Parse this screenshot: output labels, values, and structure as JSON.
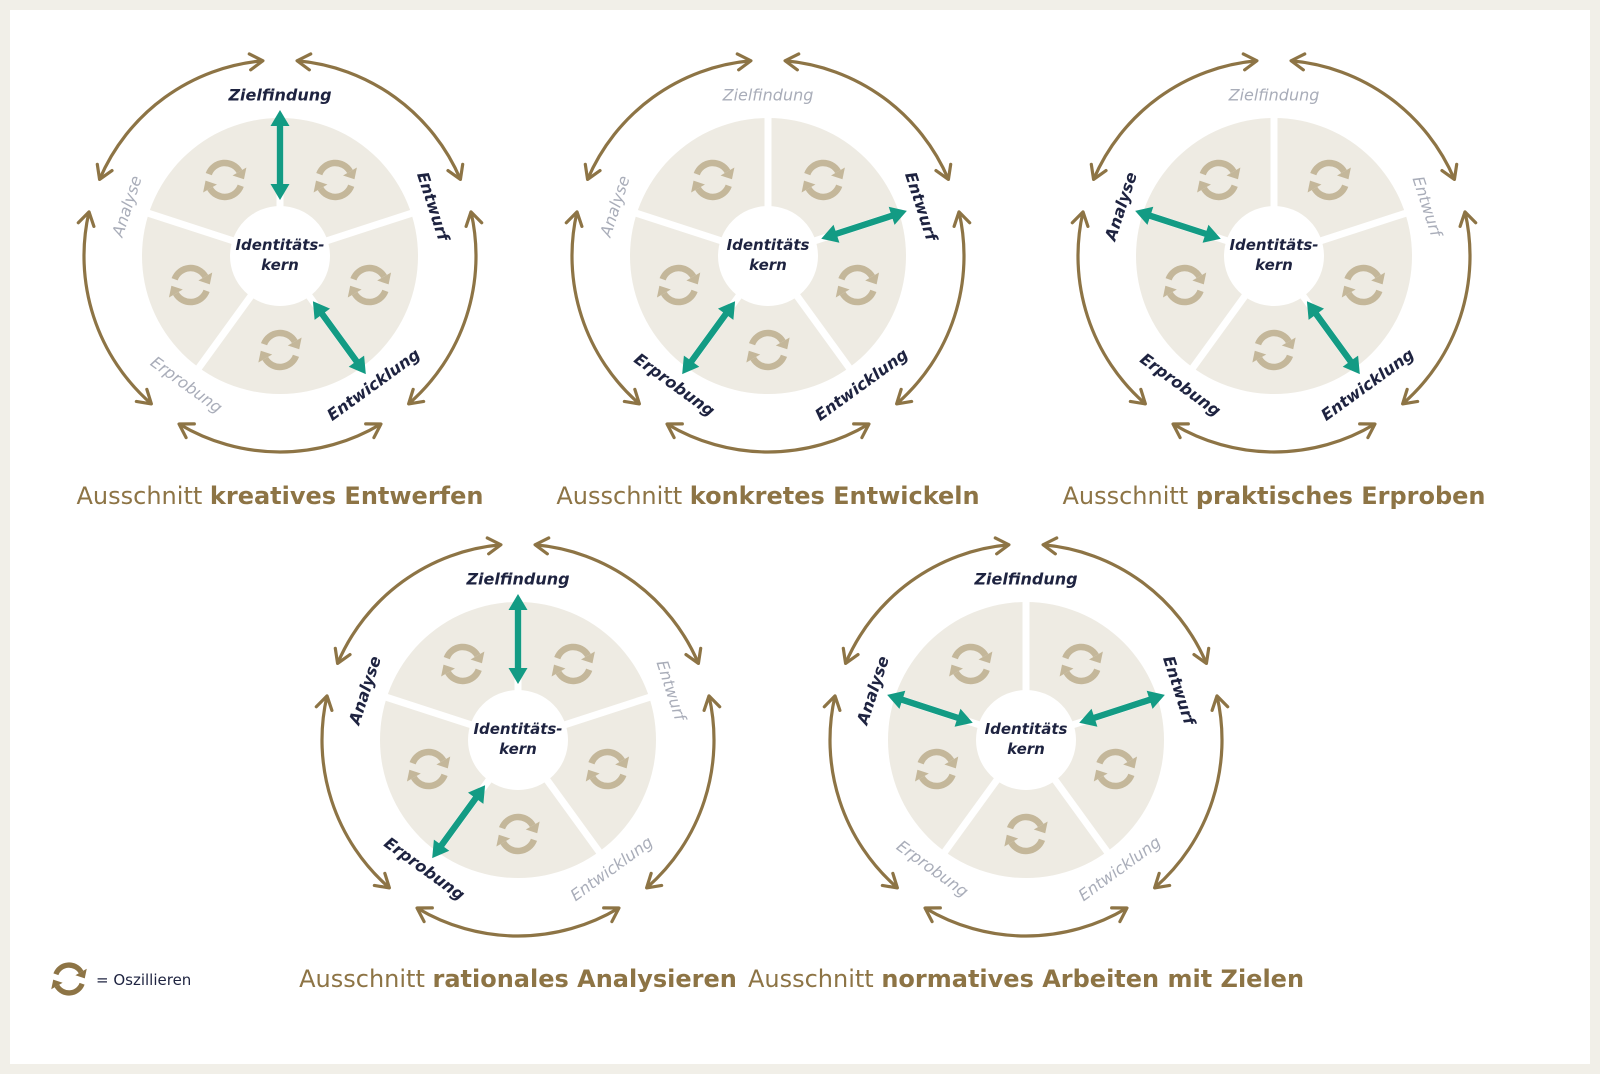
{
  "colors": {
    "ring": "#8d7445",
    "sector": "#eeebe3",
    "icon": "#c4b79a",
    "accent": "#139b84",
    "active_text": "#1e2340",
    "inactive_text": "#a9adb9",
    "caption": "#8d7445"
  },
  "core_label": {
    "line1": "Identitäts-",
    "line2": "kern"
  },
  "core_label_alt": {
    "line1": "Identitäts",
    "line2": "kern"
  },
  "diagrams": [
    {
      "id": "kreatives-entwerfen",
      "caption": {
        "prefix": "Ausschnitt ",
        "bold": "kreatives Entwerfen"
      },
      "core": "core_label",
      "phases": [
        {
          "key": "zielfindung",
          "label": "Zielfindung",
          "active": true
        },
        {
          "key": "entwurf",
          "label": "Entwurf",
          "active": true
        },
        {
          "key": "entwicklung",
          "label": "Entwicklung",
          "active": true
        },
        {
          "key": "erprobung",
          "label": "Erprobung",
          "active": false
        },
        {
          "key": "analyse",
          "label": "Analyse",
          "active": false
        }
      ],
      "arrows": [
        "zielfindung",
        "entwicklung"
      ]
    },
    {
      "id": "konkretes-entwickeln",
      "caption": {
        "prefix": "Ausschnitt ",
        "bold": "konkretes Entwickeln"
      },
      "core": "core_label_alt",
      "phases": [
        {
          "key": "zielfindung",
          "label": "Zielfindung",
          "active": false
        },
        {
          "key": "entwurf",
          "label": "Entwurf",
          "active": true
        },
        {
          "key": "entwicklung",
          "label": "Entwicklung",
          "active": true
        },
        {
          "key": "erprobung",
          "label": "Erprobung",
          "active": true
        },
        {
          "key": "analyse",
          "label": "Analyse",
          "active": false
        }
      ],
      "arrows": [
        "entwurf",
        "erprobung"
      ]
    },
    {
      "id": "praktisches-erproben",
      "caption": {
        "prefix": "Ausschnitt ",
        "bold": "praktisches Erproben"
      },
      "core": "core_label",
      "phases": [
        {
          "key": "zielfindung",
          "label": "Zielfindung",
          "active": false
        },
        {
          "key": "entwurf",
          "label": "Entwurf",
          "active": false
        },
        {
          "key": "entwicklung",
          "label": "Entwicklung",
          "active": true
        },
        {
          "key": "erprobung",
          "label": "Erprobung",
          "active": true
        },
        {
          "key": "analyse",
          "label": "Analyse",
          "active": true
        }
      ],
      "arrows": [
        "analyse",
        "entwicklung"
      ]
    },
    {
      "id": "rationales-analysieren",
      "caption": {
        "prefix": "Ausschnitt ",
        "bold": "rationales Analysieren"
      },
      "core": "core_label",
      "phases": [
        {
          "key": "zielfindung",
          "label": "Zielfindung",
          "active": true
        },
        {
          "key": "entwurf",
          "label": "Entwurf",
          "active": false
        },
        {
          "key": "entwicklung",
          "label": "Entwicklung",
          "active": false
        },
        {
          "key": "erprobung",
          "label": "Erprobung",
          "active": true
        },
        {
          "key": "analyse",
          "label": "Analyse",
          "active": true
        }
      ],
      "arrows": [
        "zielfindung",
        "erprobung"
      ]
    },
    {
      "id": "normatives-arbeiten",
      "caption": {
        "prefix": "Ausschnitt ",
        "bold": "normatives Arbeiten mit Zielen"
      },
      "core": "core_label_alt",
      "phases": [
        {
          "key": "zielfindung",
          "label": "Zielfindung",
          "active": true
        },
        {
          "key": "entwurf",
          "label": "Entwurf",
          "active": true
        },
        {
          "key": "entwicklung",
          "label": "Entwicklung",
          "active": false
        },
        {
          "key": "erprobung",
          "label": "Erprobung",
          "active": false
        },
        {
          "key": "analyse",
          "label": "Analyse",
          "active": true
        }
      ],
      "arrows": [
        "analyse",
        "entwurf"
      ]
    }
  ],
  "legend": {
    "icon": "oscillate-icon",
    "label": "= Oszillieren"
  }
}
